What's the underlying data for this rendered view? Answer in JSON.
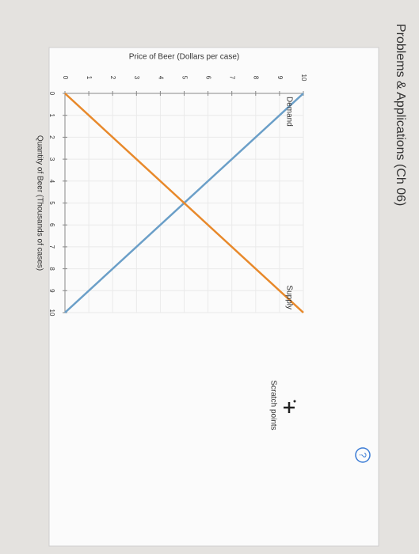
{
  "header": {
    "title": "Problems & Applications (Ch 06)"
  },
  "chart_data": {
    "type": "line",
    "x_label": "Quantity of Beer (Thousands of cases)",
    "y_label": "Price of Beer (Dollars per case)",
    "x": [
      0,
      10
    ],
    "series": [
      {
        "name": "Demand",
        "color": "#6b9fc8",
        "values": [
          10,
          0
        ]
      },
      {
        "name": "Supply",
        "color": "#e8892b",
        "values": [
          0,
          10
        ]
      }
    ],
    "xlim": [
      0,
      10
    ],
    "ylim": [
      0,
      10
    ],
    "xticks": [
      0,
      1,
      2,
      3,
      4,
      5,
      6,
      7,
      8,
      9,
      10
    ],
    "yticks": [
      0,
      1,
      2,
      3,
      4,
      5,
      6,
      7,
      8,
      9,
      10
    ],
    "grid": true
  },
  "tools": {
    "scratch_points": "Scratch points"
  }
}
